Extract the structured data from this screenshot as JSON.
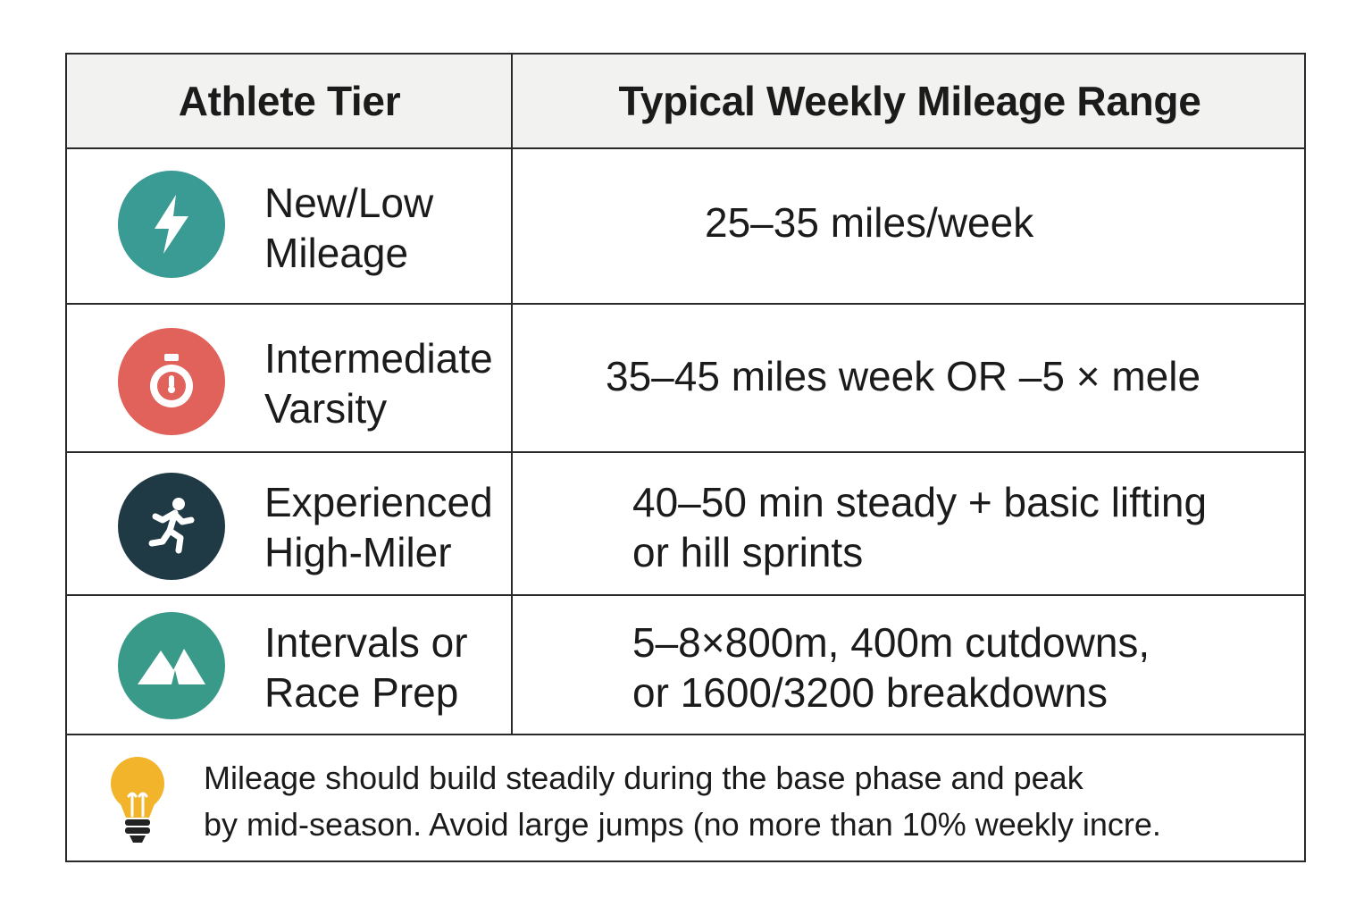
{
  "table": {
    "headers": {
      "tier": "Athlete Tier",
      "range": "Typical Weekly Mileage Range"
    },
    "rows": [
      {
        "icon": "lightning-bolt-icon",
        "icon_color": "#3a9a94",
        "tier_line1": "New/Low",
        "tier_line2": "Mileage",
        "range_line1": "25–35 miles/week",
        "range_line2": ""
      },
      {
        "icon": "stopwatch-icon",
        "icon_color": "#e0625a",
        "tier_line1": "Intermediate",
        "tier_line2": "Varsity",
        "range_line1": "35–45 miles week OR –5 × mele",
        "range_line2": ""
      },
      {
        "icon": "runner-icon",
        "icon_color": "#1f3a45",
        "tier_line1": "Experienced",
        "tier_line2": "High-Miler",
        "range_line1": "40–50 min steady + basic lifting",
        "range_line2": "or hill sprints"
      },
      {
        "icon": "mountain-icon",
        "icon_color": "#3a9a8a",
        "tier_line1": "Intervals or",
        "tier_line2": "Race Prep",
        "range_line1": "5–8×800m, 400m cutdowns,",
        "range_line2": "or 1600/3200 breakdowns"
      }
    ],
    "note": {
      "icon": "lightbulb-icon",
      "icon_color": "#f2b42a",
      "line1": "Mileage should build steadily during the base phase and peak",
      "line2": "by mid-season. Avoid large jumps (no more than 10% weekly incre."
    }
  }
}
